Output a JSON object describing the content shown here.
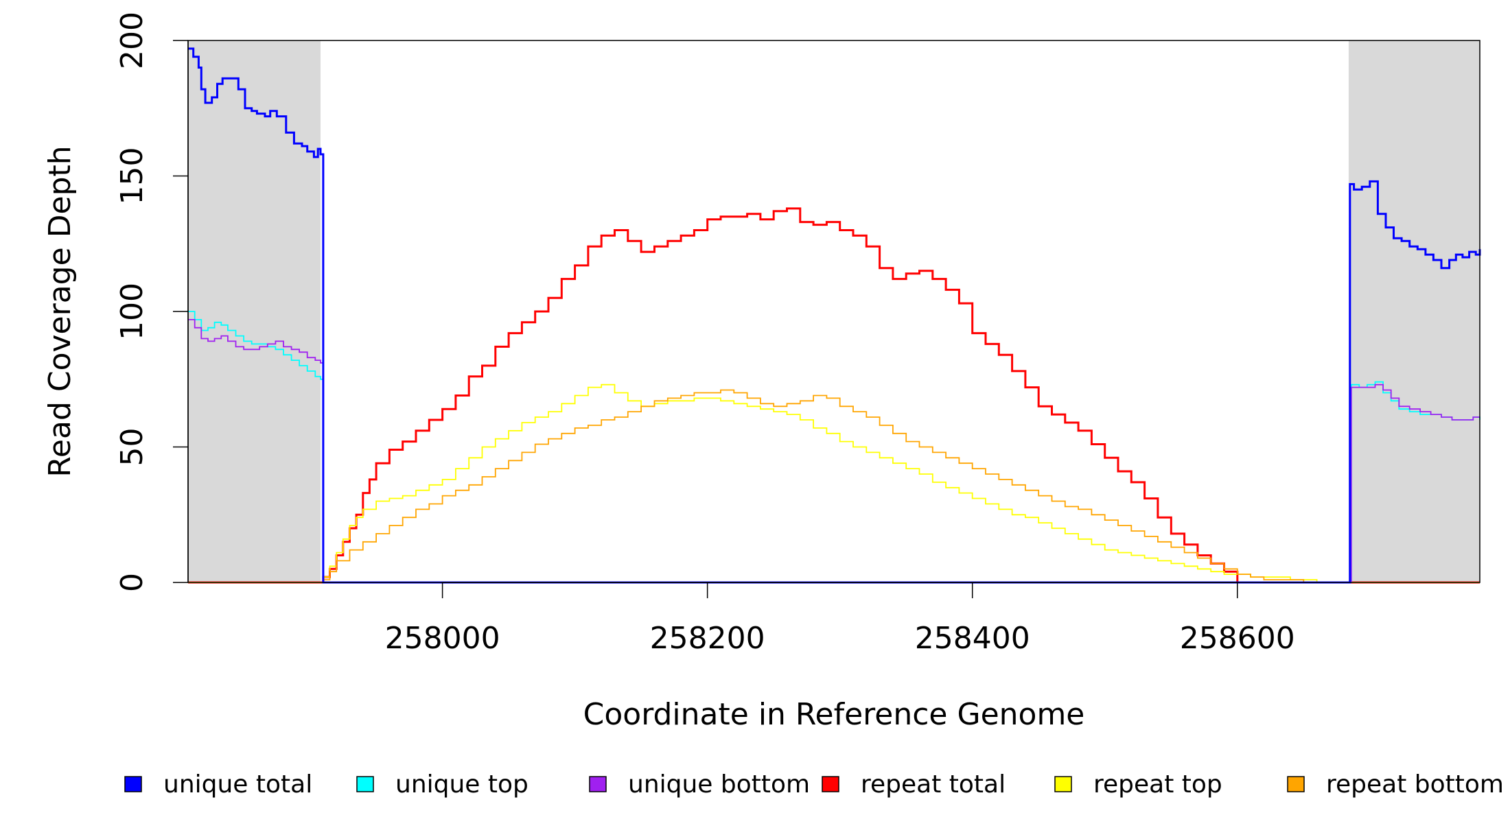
{
  "chart_data": {
    "type": "line",
    "title": "",
    "xlabel": "Coordinate in Reference Genome",
    "ylabel": "Read Coverage Depth",
    "xlim": [
      257808,
      258783
    ],
    "ylim": [
      0,
      200
    ],
    "xticks": [
      258000,
      258200,
      258400,
      258600
    ],
    "yticks": [
      0,
      50,
      100,
      150,
      200
    ],
    "xtick_labels": [
      "258000",
      "258200",
      "258400",
      "258600"
    ],
    "ytick_labels": [
      "0",
      "50",
      "100",
      "150",
      "200"
    ],
    "shaded_regions": [
      {
        "x0": 257808,
        "x1": 257908
      },
      {
        "x0": 258684,
        "x1": 258783
      }
    ],
    "legend_position": "bottom",
    "grid": false,
    "series": [
      {
        "name": "unique total",
        "color": "#0000ff",
        "x": [
          257808,
          257812,
          257816,
          257818,
          257821,
          257826,
          257830,
          257834,
          257840,
          257846,
          257851,
          257856,
          257860,
          257866,
          257870,
          257875,
          257882,
          257888,
          257894,
          257898,
          257903,
          257906,
          257908,
          257910,
          258683,
          258685,
          258688,
          258694,
          258700,
          258706,
          258712,
          258718,
          258724,
          258730,
          258736,
          258742,
          258748,
          258754,
          258760,
          258765,
          258770,
          258775,
          258780,
          258783
        ],
        "y": [
          197,
          194,
          190,
          182,
          177,
          179,
          184,
          186,
          186,
          182,
          175,
          174,
          173,
          172,
          174,
          172,
          166,
          162,
          161,
          159,
          157,
          160,
          158,
          0,
          0,
          147,
          145,
          146,
          148,
          136,
          131,
          127,
          126,
          124,
          123,
          121,
          119,
          116,
          119,
          121,
          120,
          122,
          121,
          123
        ]
      },
      {
        "name": "unique top",
        "color": "#00ffff",
        "x": [
          257808,
          257813,
          257818,
          257823,
          257828,
          257833,
          257838,
          257844,
          257850,
          257856,
          257862,
          257868,
          257874,
          257880,
          257886,
          257892,
          257898,
          257904,
          257908,
          257910,
          258683,
          258686,
          258692,
          258698,
          258704,
          258710,
          258716,
          258722,
          258730,
          258738,
          258746,
          258754,
          258762,
          258770,
          258778,
          258783
        ],
        "y": [
          100,
          97,
          93,
          94,
          96,
          95,
          93,
          91,
          89,
          88,
          88,
          87,
          86,
          84,
          82,
          80,
          78,
          76,
          75,
          0,
          0,
          73,
          72,
          73,
          74,
          70,
          67,
          64,
          63,
          62,
          62,
          61,
          60,
          60,
          61,
          60
        ]
      },
      {
        "name": "unique bottom",
        "color": "#a020f0",
        "x": [
          257808,
          257813,
          257818,
          257823,
          257828,
          257833,
          257838,
          257844,
          257850,
          257856,
          257862,
          257868,
          257874,
          257880,
          257886,
          257892,
          257898,
          257904,
          257908,
          257910,
          258683,
          258686,
          258692,
          258698,
          258704,
          258710,
          258716,
          258722,
          258730,
          258738,
          258746,
          258754,
          258762,
          258770,
          258778,
          258783
        ],
        "y": [
          97,
          94,
          90,
          89,
          90,
          91,
          89,
          87,
          86,
          86,
          87,
          88,
          89,
          87,
          86,
          85,
          83,
          82,
          81,
          0,
          0,
          72,
          72,
          72,
          73,
          71,
          68,
          65,
          64,
          63,
          62,
          61,
          60,
          60,
          61,
          61
        ]
      },
      {
        "name": "repeat total",
        "color": "#ff0000",
        "x": [
          257808,
          257908,
          257910,
          257915,
          257920,
          257925,
          257930,
          257935,
          257940,
          257945,
          257950,
          257960,
          257970,
          257980,
          257990,
          258000,
          258010,
          258020,
          258030,
          258040,
          258050,
          258060,
          258070,
          258080,
          258090,
          258100,
          258110,
          258120,
          258130,
          258140,
          258150,
          258160,
          258170,
          258180,
          258190,
          258200,
          258210,
          258220,
          258230,
          258240,
          258250,
          258260,
          258270,
          258280,
          258290,
          258300,
          258310,
          258320,
          258330,
          258340,
          258350,
          258360,
          258370,
          258380,
          258390,
          258400,
          258410,
          258420,
          258430,
          258440,
          258450,
          258460,
          258470,
          258480,
          258490,
          258500,
          258510,
          258520,
          258530,
          258540,
          258550,
          258560,
          258570,
          258580,
          258590,
          258600,
          258610,
          258620,
          258630,
          258640,
          258650,
          258660,
          258665,
          258670,
          258675,
          258680,
          258683,
          258685,
          258783
        ],
        "y": [
          0,
          0,
          2,
          5,
          10,
          15,
          20,
          25,
          33,
          38,
          44,
          49,
          52,
          56,
          60,
          64,
          69,
          76,
          80,
          87,
          92,
          96,
          100,
          105,
          112,
          117,
          124,
          128,
          130,
          126,
          122,
          124,
          126,
          128,
          130,
          134,
          135,
          135,
          136,
          134,
          137,
          138,
          133,
          132,
          133,
          130,
          128,
          124,
          116,
          112,
          114,
          115,
          112,
          108,
          103,
          92,
          88,
          84,
          78,
          72,
          65,
          62,
          59,
          56,
          51,
          46,
          41,
          37,
          31,
          24,
          18,
          14,
          10,
          7,
          4,
          0,
          0,
          0,
          0,
          0,
          0,
          0,
          0,
          0,
          0,
          0,
          0,
          0,
          0
        ]
      },
      {
        "name": "repeat top",
        "color": "#ffff00",
        "x": [
          257808,
          257908,
          257910,
          257915,
          257920,
          257925,
          257930,
          257935,
          257940,
          257950,
          257960,
          257970,
          257980,
          257990,
          258000,
          258010,
          258020,
          258030,
          258040,
          258050,
          258060,
          258070,
          258080,
          258090,
          258100,
          258110,
          258120,
          258130,
          258140,
          258150,
          258160,
          258165,
          258170,
          258180,
          258190,
          258200,
          258210,
          258220,
          258230,
          258240,
          258250,
          258260,
          258270,
          258280,
          258290,
          258300,
          258310,
          258320,
          258330,
          258340,
          258350,
          258360,
          258370,
          258380,
          258390,
          258400,
          258410,
          258420,
          258430,
          258440,
          258450,
          258460,
          258470,
          258480,
          258490,
          258500,
          258510,
          258520,
          258530,
          258540,
          258550,
          258560,
          258570,
          258580,
          258590,
          258600,
          258610,
          258620,
          258630,
          258640,
          258650,
          258660,
          258670,
          258680,
          258683,
          258685,
          258783
        ],
        "y": [
          0,
          0,
          2,
          6,
          11,
          16,
          21,
          24,
          27,
          30,
          31,
          32,
          34,
          36,
          38,
          42,
          46,
          50,
          53,
          56,
          59,
          61,
          63,
          66,
          69,
          72,
          73,
          70,
          67,
          65,
          66,
          66,
          67,
          67,
          68,
          68,
          67,
          66,
          65,
          64,
          63,
          62,
          60,
          57,
          55,
          52,
          50,
          48,
          46,
          44,
          42,
          40,
          37,
          35,
          33,
          31,
          29,
          27,
          25,
          24,
          22,
          20,
          18,
          16,
          14,
          12,
          11,
          10,
          9,
          8,
          7,
          6,
          5,
          4,
          3,
          3,
          2,
          2,
          2,
          1,
          1,
          0,
          0,
          0,
          0,
          0,
          0
        ]
      },
      {
        "name": "repeat bottom",
        "color": "#ffa500",
        "x": [
          257808,
          257908,
          257910,
          257915,
          257920,
          257930,
          257940,
          257950,
          257960,
          257970,
          257980,
          257990,
          258000,
          258010,
          258020,
          258030,
          258040,
          258050,
          258060,
          258070,
          258080,
          258090,
          258100,
          258110,
          258120,
          258130,
          258140,
          258150,
          258160,
          258170,
          258180,
          258190,
          258200,
          258210,
          258220,
          258230,
          258240,
          258250,
          258260,
          258270,
          258280,
          258290,
          258300,
          258310,
          258320,
          258330,
          258340,
          258350,
          258360,
          258370,
          258380,
          258390,
          258400,
          258410,
          258420,
          258430,
          258440,
          258450,
          258460,
          258470,
          258480,
          258490,
          258500,
          258510,
          258520,
          258530,
          258540,
          258550,
          258560,
          258570,
          258580,
          258590,
          258600,
          258610,
          258620,
          258630,
          258640,
          258650,
          258660,
          258670,
          258680,
          258683,
          258685,
          258783
        ],
        "y": [
          0,
          0,
          1,
          4,
          8,
          12,
          15,
          18,
          21,
          24,
          27,
          29,
          32,
          34,
          36,
          39,
          42,
          45,
          48,
          51,
          53,
          55,
          57,
          58,
          60,
          61,
          63,
          65,
          67,
          68,
          69,
          70,
          70,
          71,
          70,
          68,
          66,
          65,
          66,
          67,
          69,
          68,
          65,
          63,
          61,
          58,
          55,
          52,
          50,
          48,
          46,
          44,
          42,
          40,
          38,
          36,
          34,
          32,
          30,
          28,
          27,
          25,
          23,
          21,
          19,
          17,
          15,
          13,
          11,
          9,
          7,
          5,
          3,
          2,
          1,
          1,
          1,
          0,
          0,
          0,
          0,
          0,
          0,
          0
        ]
      }
    ]
  }
}
